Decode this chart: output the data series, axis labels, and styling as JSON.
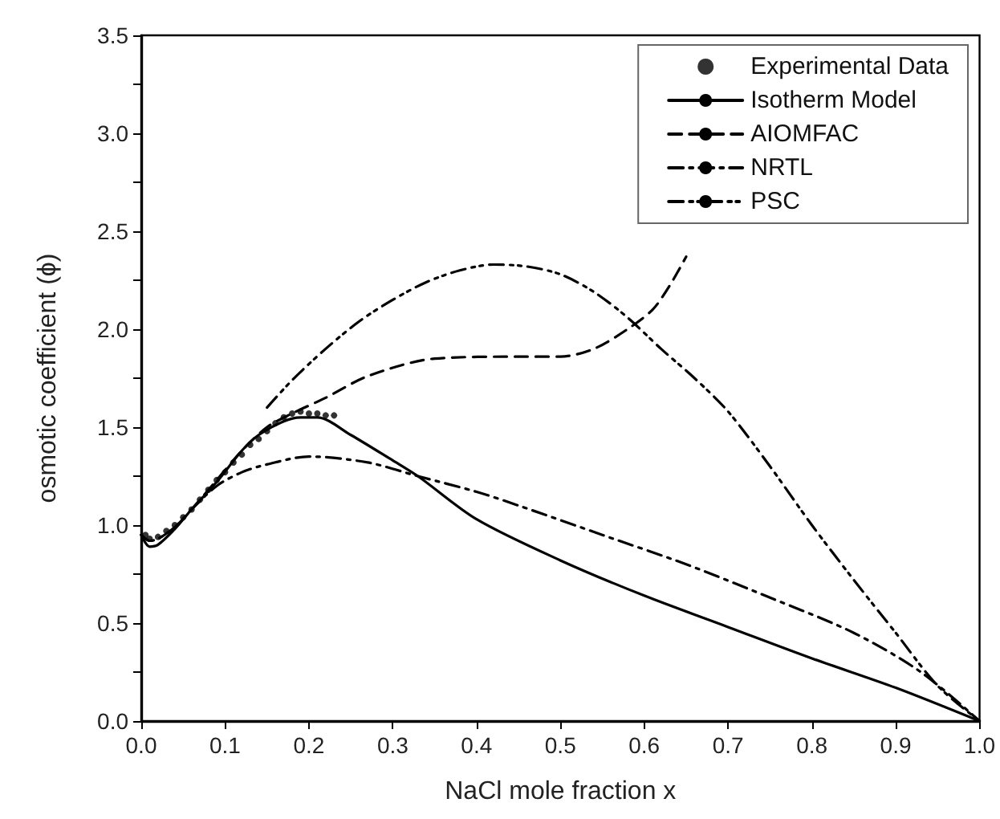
{
  "chart_data": {
    "type": "line",
    "xlabel": "NaCl mole fraction x",
    "ylabel": "osmotic coefficient (ϕ)",
    "xlim": [
      0,
      1.0
    ],
    "xticks": [
      {
        "value": 0,
        "label": "0.0"
      },
      0.1,
      0.2,
      0.3,
      0.4,
      0.5,
      0.6,
      0.7,
      0.8,
      0.9,
      {
        "value": 1,
        "label": "1.0"
      }
    ],
    "ylim": [
      0,
      3.5
    ],
    "yticks": [
      {
        "value": 0,
        "label": "0.0"
      },
      {
        "value": 0.25,
        "label": null
      },
      0.5,
      {
        "value": 0.75,
        "label": null
      },
      {
        "value": 1,
        "label": "1.0"
      },
      {
        "value": 1.25,
        "label": null
      },
      1.5,
      {
        "value": 1.75,
        "label": null
      },
      {
        "value": 2,
        "label": "2.0"
      },
      {
        "value": 2.25,
        "label": null
      },
      2.5,
      {
        "value": 2.75,
        "label": null
      },
      {
        "value": 3,
        "label": "3.0"
      },
      {
        "value": 3.25,
        "label": null
      },
      3.5
    ],
    "grid": false,
    "legend": "top right",
    "series": [
      {
        "name": "Experimental Data",
        "type": "scatter",
        "marker": "circle",
        "color": "#000000",
        "x": [
          0.005,
          0.01,
          0.02,
          0.03,
          0.04,
          0.05,
          0.06,
          0.07,
          0.08,
          0.09,
          0.1,
          0.11,
          0.12,
          0.13,
          0.14,
          0.15,
          0.16,
          0.17,
          0.18,
          0.19,
          0.2,
          0.21,
          0.22,
          0.23
        ],
        "values": [
          0.95,
          0.93,
          0.94,
          0.97,
          1.0,
          1.04,
          1.08,
          1.13,
          1.18,
          1.23,
          1.27,
          1.32,
          1.36,
          1.41,
          1.44,
          1.48,
          1.52,
          1.55,
          1.57,
          1.58,
          1.57,
          1.57,
          1.56,
          1.56
        ]
      },
      {
        "name": "Isotherm Model",
        "marker": "none",
        "line_style": "solid",
        "color": "#000000",
        "x": [
          0,
          0.01,
          0.02,
          0.04,
          0.06,
          0.09,
          0.12,
          0.14,
          0.17,
          0.19,
          0.21,
          0.25,
          0.3,
          0.33,
          0.4,
          0.5,
          0.6,
          0.7,
          0.8,
          0.9,
          1.0
        ],
        "values": [
          0.95,
          0.89,
          0.9,
          0.98,
          1.08,
          1.22,
          1.38,
          1.46,
          1.53,
          1.55,
          1.55,
          1.46,
          1.33,
          1.25,
          1.03,
          0.82,
          0.64,
          0.48,
          0.32,
          0.17,
          0.0
        ]
      },
      {
        "name": "AIOMFAC",
        "marker": "none",
        "line_style": "dashed",
        "color": "#000000",
        "x": [
          0,
          0.01,
          0.02,
          0.04,
          0.06,
          0.09,
          0.12,
          0.15,
          0.18,
          0.22,
          0.27,
          0.35,
          0.45,
          0.5,
          0.54,
          0.58,
          0.61,
          0.63,
          0.65
        ],
        "values": [
          0.95,
          0.92,
          0.93,
          0.99,
          1.08,
          1.23,
          1.38,
          1.5,
          1.57,
          1.65,
          1.76,
          1.85,
          1.86,
          1.86,
          1.9,
          2.0,
          2.1,
          2.22,
          2.37
        ]
      },
      {
        "name": "NRTL",
        "marker": "none",
        "line_style": "dashdot",
        "color": "#000000",
        "x": [
          0,
          0.01,
          0.02,
          0.04,
          0.06,
          0.09,
          0.12,
          0.15,
          0.2,
          0.27,
          0.33,
          0.4,
          0.45,
          0.55,
          0.65,
          0.75,
          0.85,
          0.93,
          1.0
        ],
        "values": [
          0.95,
          0.92,
          0.93,
          0.99,
          1.08,
          1.2,
          1.27,
          1.31,
          1.35,
          1.32,
          1.25,
          1.17,
          1.1,
          0.95,
          0.8,
          0.63,
          0.45,
          0.25,
          0.0
        ]
      },
      {
        "name": "PSC",
        "marker": "none",
        "line_style": "dashdotdot",
        "color": "#000000",
        "x": [
          0.15,
          0.18,
          0.22,
          0.26,
          0.3,
          0.34,
          0.38,
          0.42,
          0.46,
          0.5,
          0.54,
          0.58,
          0.62,
          0.66,
          0.7,
          0.75,
          0.8,
          0.85,
          0.9,
          0.95,
          1.0
        ],
        "values": [
          1.6,
          1.74,
          1.9,
          2.04,
          2.15,
          2.24,
          2.3,
          2.33,
          2.32,
          2.28,
          2.19,
          2.06,
          1.9,
          1.75,
          1.58,
          1.3,
          1.0,
          0.72,
          0.45,
          0.18,
          0.0
        ]
      }
    ]
  }
}
